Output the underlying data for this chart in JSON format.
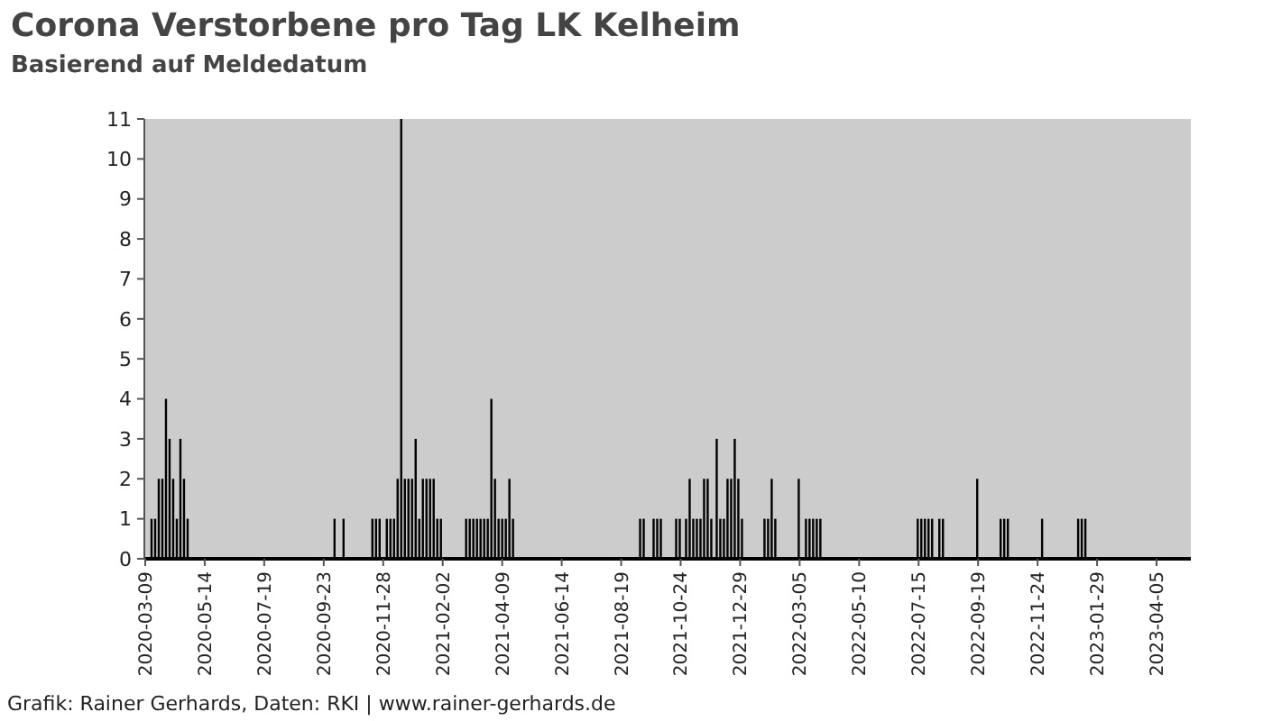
{
  "chart_data": {
    "type": "bar",
    "title": "Corona Verstorbene pro Tag LK Kelheim",
    "subtitle": "Basierend auf Meldedatum",
    "annotations": [
      "Grafik: Rainer Gerhards, Daten: RKI | www.rainer-gerhards.de"
    ],
    "x": [
      "2020-03-16",
      "2020-03-20",
      "2020-03-24",
      "2020-03-28",
      "2020-04-01",
      "2020-04-05",
      "2020-04-09",
      "2020-04-13",
      "2020-04-17",
      "2020-04-21",
      "2020-04-25",
      "2020-10-05",
      "2020-10-15",
      "2020-11-16",
      "2020-11-20",
      "2020-11-24",
      "2020-12-02",
      "2020-12-06",
      "2020-12-10",
      "2020-12-14",
      "2020-12-18",
      "2020-12-22",
      "2020-12-26",
      "2020-12-30",
      "2021-01-03",
      "2021-01-07",
      "2021-01-11",
      "2021-01-15",
      "2021-01-19",
      "2021-01-23",
      "2021-01-27",
      "2021-01-31",
      "2021-02-28",
      "2021-03-04",
      "2021-03-08",
      "2021-03-12",
      "2021-03-16",
      "2021-03-20",
      "2021-03-24",
      "2021-03-28",
      "2021-04-01",
      "2021-04-05",
      "2021-04-09",
      "2021-04-13",
      "2021-04-17",
      "2021-04-21",
      "2021-09-09",
      "2021-09-13",
      "2021-09-24",
      "2021-09-28",
      "2021-10-02",
      "2021-10-19",
      "2021-10-23",
      "2021-10-30",
      "2021-11-03",
      "2021-11-07",
      "2021-11-11",
      "2021-11-15",
      "2021-11-19",
      "2021-11-23",
      "2021-11-27",
      "2021-12-03",
      "2021-12-07",
      "2021-12-11",
      "2021-12-15",
      "2021-12-19",
      "2021-12-23",
      "2021-12-27",
      "2021-12-31",
      "2022-01-25",
      "2022-01-29",
      "2022-02-02",
      "2022-02-06",
      "2022-03-04",
      "2022-03-12",
      "2022-03-16",
      "2022-03-20",
      "2022-03-24",
      "2022-03-28",
      "2022-07-14",
      "2022-07-18",
      "2022-07-22",
      "2022-07-26",
      "2022-07-30",
      "2022-08-07",
      "2022-08-11",
      "2022-09-18",
      "2022-10-14",
      "2022-10-18",
      "2022-10-22",
      "2022-11-29",
      "2023-01-08",
      "2023-01-12",
      "2023-01-16"
    ],
    "values": [
      1,
      1,
      2,
      2,
      4,
      3,
      2,
      1,
      3,
      2,
      1,
      1,
      1,
      1,
      1,
      1,
      1,
      1,
      1,
      2,
      11,
      2,
      2,
      2,
      3,
      1,
      2,
      2,
      2,
      2,
      1,
      1,
      1,
      1,
      1,
      1,
      1,
      1,
      1,
      4,
      2,
      1,
      1,
      1,
      2,
      1,
      1,
      1,
      1,
      1,
      1,
      1,
      1,
      1,
      2,
      1,
      1,
      1,
      2,
      2,
      1,
      3,
      1,
      1,
      2,
      2,
      3,
      2,
      1,
      1,
      1,
      2,
      1,
      2,
      1,
      1,
      1,
      1,
      1,
      1,
      1,
      1,
      1,
      1,
      1,
      1,
      2,
      1,
      1,
      1,
      1,
      1,
      1,
      1
    ],
    "color": "#000000",
    "xlim": [
      "2020-03-08",
      "2023-05-13"
    ],
    "xticks": [
      "2020-03-09",
      "2020-05-14",
      "2020-07-19",
      "2020-09-23",
      "2020-11-28",
      "2021-02-02",
      "2021-04-09",
      "2021-06-14",
      "2021-08-19",
      "2021-10-24",
      "2021-12-29",
      "2022-03-05",
      "2022-05-10",
      "2022-07-15",
      "2022-09-19",
      "2022-11-24",
      "2023-01-29",
      "2023-04-05"
    ],
    "ylim": [
      0,
      11
    ],
    "yticks": [
      0,
      1,
      2,
      3,
      4,
      5,
      6,
      7,
      8,
      9,
      10,
      11
    ]
  }
}
